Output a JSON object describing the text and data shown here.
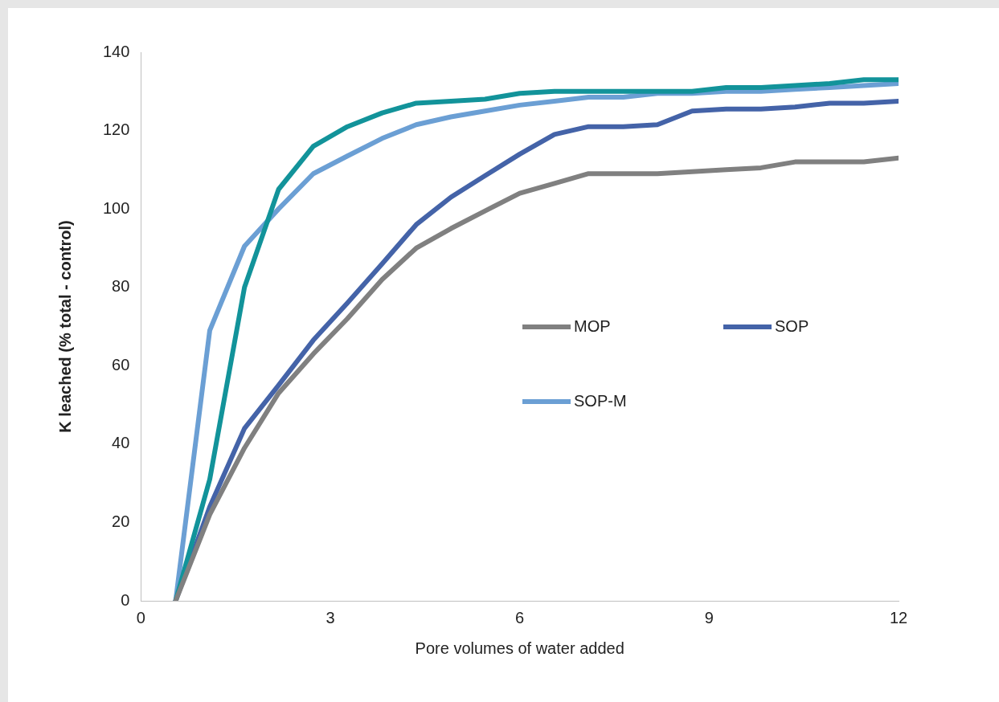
{
  "chart_data": {
    "type": "line",
    "xlabel": "Pore volumes of water added",
    "ylabel": "K leached (% total - control)",
    "x": [
      0.55,
      1.09,
      1.64,
      2.18,
      2.73,
      3.27,
      3.82,
      4.36,
      4.91,
      5.45,
      6.0,
      6.55,
      7.09,
      7.64,
      8.18,
      8.73,
      9.27,
      9.82,
      10.36,
      10.91,
      11.45,
      12.0
    ],
    "series": [
      {
        "name": "MOP",
        "color": "#808080",
        "values": [
          0,
          22,
          39,
          53,
          63,
          72,
          82,
          90,
          95,
          99.5,
          104,
          106.5,
          109,
          109,
          109,
          109.5,
          110,
          110.5,
          112,
          112,
          112,
          113
        ]
      },
      {
        "color": "#12939a",
        "values": [
          0,
          31,
          80,
          105,
          116,
          121,
          124.5,
          127,
          127.5,
          128,
          129.5,
          130,
          130,
          130,
          130,
          130,
          131,
          131,
          131.5,
          132,
          133,
          133
        ]
      },
      {
        "name": "SOP",
        "color": "#4463a8",
        "values": [
          0,
          24,
          44,
          55,
          66.5,
          76,
          86,
          96,
          103,
          108.5,
          114,
          119,
          121,
          121,
          121.5,
          125,
          125.5,
          125.5,
          126,
          127,
          127,
          127.5
        ]
      },
      {
        "name": "SOP-M",
        "color": "#6b9fd4",
        "values": [
          0,
          69,
          90.5,
          100,
          109,
          113.5,
          118,
          121.5,
          123.5,
          125,
          126.5,
          127.5,
          128.5,
          128.5,
          129.5,
          129.5,
          130,
          130,
          130.5,
          131,
          131.5,
          132
        ]
      }
    ],
    "xlim": [
      0,
      12
    ],
    "xticks": [
      0,
      3,
      6,
      9,
      12
    ],
    "ylim": [
      0,
      140
    ],
    "yticks": [
      0,
      20,
      40,
      60,
      80,
      100,
      120,
      140
    ],
    "grid": false,
    "legend": "right",
    "marker": "none",
    "line_style": "solid"
  }
}
